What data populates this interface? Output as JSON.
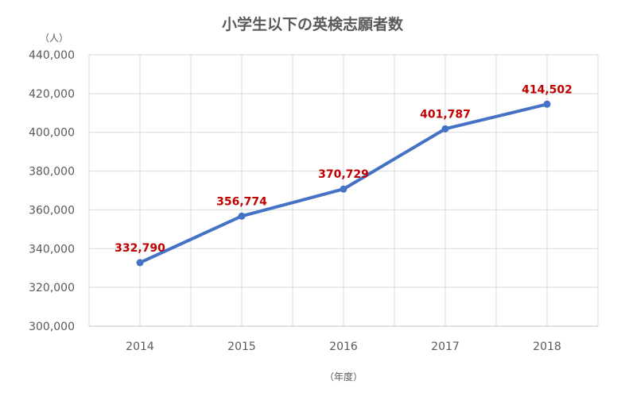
{
  "chart_data": {
    "type": "line",
    "title": "小学生以下の英検志願者数",
    "ylabel": "（人）",
    "xlabel": "（年度）",
    "categories": [
      "2014",
      "2015",
      "2016",
      "2017",
      "2018"
    ],
    "series": [
      {
        "values": [
          332790,
          356774,
          370729,
          401787,
          414502
        ],
        "labels": [
          "332,790",
          "356,774",
          "370,729",
          "401,787",
          "414,502"
        ],
        "color": "#4472c4"
      }
    ],
    "ylim": [
      300000,
      440000
    ],
    "y_ticks": [
      300000,
      320000,
      340000,
      360000,
      380000,
      400000,
      420000,
      440000
    ],
    "y_tick_labels": [
      "300,000",
      "320,000",
      "340,000",
      "360,000",
      "380,000",
      "400,000",
      "420,000",
      "440,000"
    ],
    "grid": true,
    "label_color": "#c00000",
    "legend": "none"
  }
}
